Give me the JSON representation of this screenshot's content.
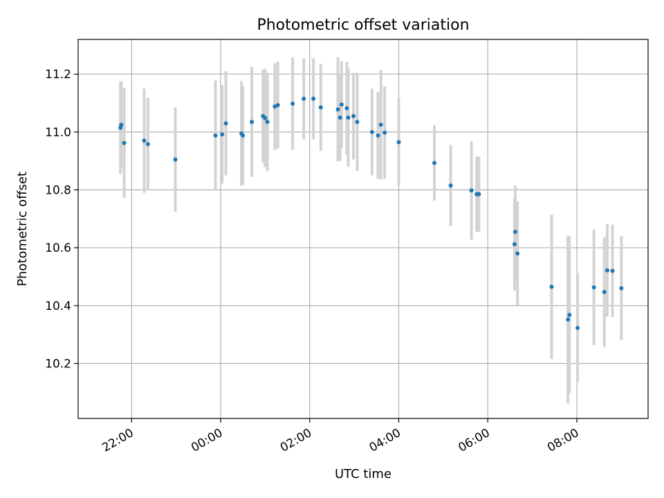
{
  "chart_data": {
    "type": "scatter",
    "title": "Photometric offset variation",
    "xlabel": "UTC time",
    "ylabel": "Photometric offset",
    "x_axis_type": "time",
    "xlim_hours": [
      20.8,
      33.6
    ],
    "ylim": [
      10.01,
      11.32
    ],
    "x_ticks": [
      {
        "hours": 22,
        "label": "22:00"
      },
      {
        "hours": 24,
        "label": "00:00"
      },
      {
        "hours": 26,
        "label": "02:00"
      },
      {
        "hours": 28,
        "label": "04:00"
      },
      {
        "hours": 30,
        "label": "06:00"
      },
      {
        "hours": 32,
        "label": "08:00"
      }
    ],
    "y_ticks": [
      {
        "value": 10.2,
        "label": "10.2"
      },
      {
        "value": 10.4,
        "label": "10.4"
      },
      {
        "value": 10.6,
        "label": "10.6"
      },
      {
        "value": 10.8,
        "label": "10.8"
      },
      {
        "value": 11.0,
        "label": "11.0"
      },
      {
        "value": 11.2,
        "label": "11.2"
      }
    ],
    "grid": true,
    "legend": "none",
    "colors": {
      "points": "#1f77b4",
      "errorbars": "#d3d3d3",
      "grid": "#b0b0b0"
    },
    "series": [
      {
        "x": [
          "21:45",
          "21:46",
          "21:50",
          "22:17",
          "22:22",
          "22:59",
          "23:53",
          "24:02",
          "24:07",
          "24:28",
          "24:30",
          "24:42",
          "24:57",
          "25:00",
          "25:03",
          "25:13",
          "25:17",
          "25:37",
          "25:52",
          "26:05",
          "26:15",
          "26:38",
          "26:41",
          "26:43",
          "26:50",
          "26:52",
          "26:59",
          "27:04",
          "27:24",
          "27:32",
          "27:36",
          "27:41",
          "28:00",
          "28:48",
          "29:10",
          "29:38",
          "29:45",
          "29:48",
          "30:36",
          "30:37",
          "30:40",
          "31:26",
          "31:48",
          "31:50",
          "32:01",
          "32:23",
          "32:37",
          "32:41",
          "32:48",
          "33:00"
        ],
        "y": [
          11.015,
          11.025,
          10.962,
          10.97,
          10.958,
          10.905,
          10.988,
          10.992,
          11.03,
          10.995,
          10.988,
          11.035,
          11.055,
          11.048,
          11.035,
          11.088,
          11.093,
          11.098,
          11.115,
          11.115,
          11.085,
          11.078,
          11.05,
          11.095,
          11.082,
          11.05,
          11.055,
          11.035,
          11.0,
          10.988,
          11.025,
          10.998,
          10.965,
          10.893,
          10.815,
          10.798,
          10.785,
          10.785,
          10.612,
          10.655,
          10.58,
          10.465,
          10.352,
          10.368,
          10.323,
          10.463,
          10.447,
          10.522,
          10.52,
          10.46
        ],
        "yerr": [
          0.16,
          0.15,
          0.19,
          0.18,
          0.16,
          0.18,
          0.19,
          0.17,
          0.18,
          0.18,
          0.17,
          0.19,
          0.16,
          0.17,
          0.17,
          0.15,
          0.15,
          0.16,
          0.14,
          0.14,
          0.15,
          0.18,
          0.15,
          0.15,
          0.16,
          0.17,
          0.15,
          0.17,
          0.15,
          0.15,
          0.19,
          0.16,
          0.15,
          0.13,
          0.14,
          0.17,
          0.13,
          0.13,
          0.16,
          0.16,
          0.18,
          0.25,
          0.29,
          0.27,
          0.19,
          0.2,
          0.19,
          0.16,
          0.16,
          0.18
        ]
      }
    ]
  }
}
